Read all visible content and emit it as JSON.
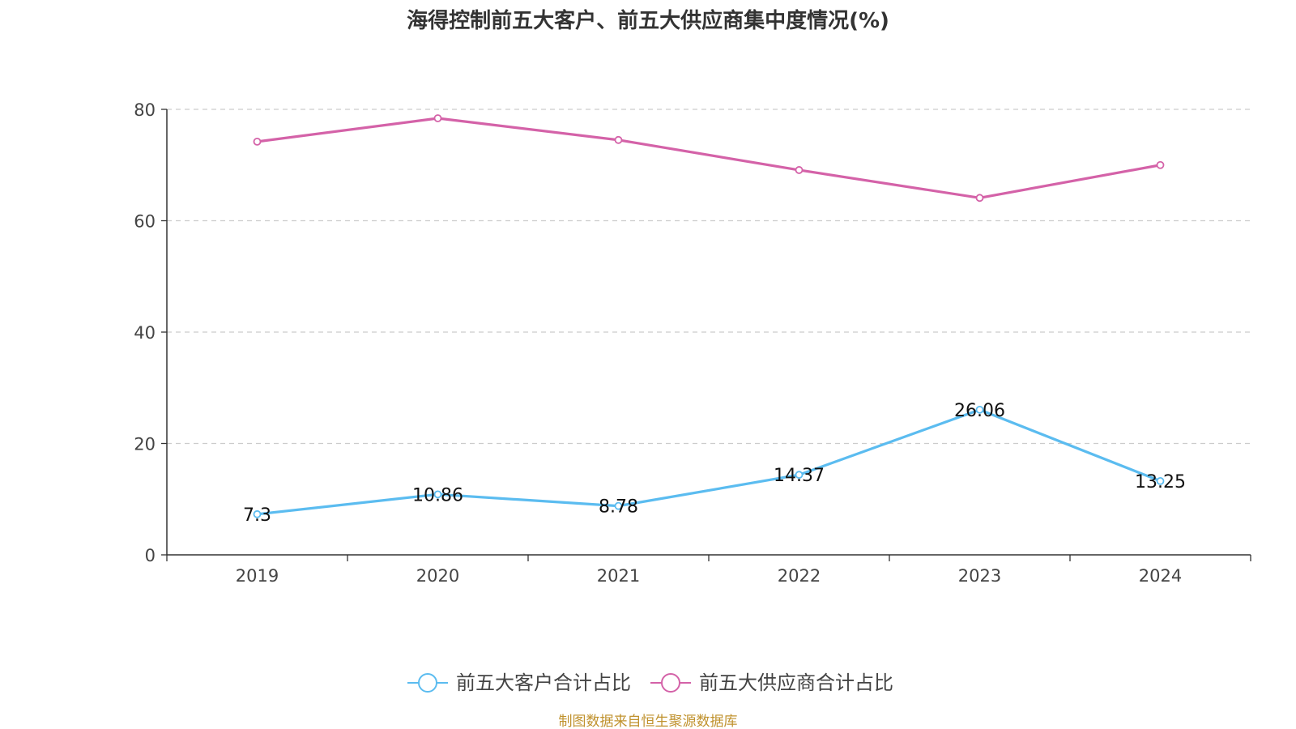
{
  "chart_data": {
    "type": "line",
    "title": "海得控制前五大客户、前五大供应商集中度情况(%)",
    "categories": [
      "2019",
      "2020",
      "2021",
      "2022",
      "2023",
      "2024"
    ],
    "ylim": [
      0,
      80
    ],
    "yticks": [
      "0",
      "20",
      "40",
      "60",
      "80"
    ],
    "grid": true,
    "legend_position": "bottom",
    "series": [
      {
        "name": "前五大客户合计占比",
        "values": [
          7.3,
          10.86,
          8.78,
          14.37,
          26.06,
          13.25
        ],
        "labels": [
          "7.3",
          "10.86",
          "8.78",
          "14.37",
          "26.06",
          "13.25"
        ],
        "color": "#5bbcf0"
      },
      {
        "name": "前五大供应商合计占比",
        "values": [
          74.2,
          78.4,
          74.5,
          69.1,
          64.1,
          70.0
        ],
        "labels": null,
        "color": "#d462a8"
      }
    ],
    "source": "制图数据来自恒生聚源数据库"
  }
}
